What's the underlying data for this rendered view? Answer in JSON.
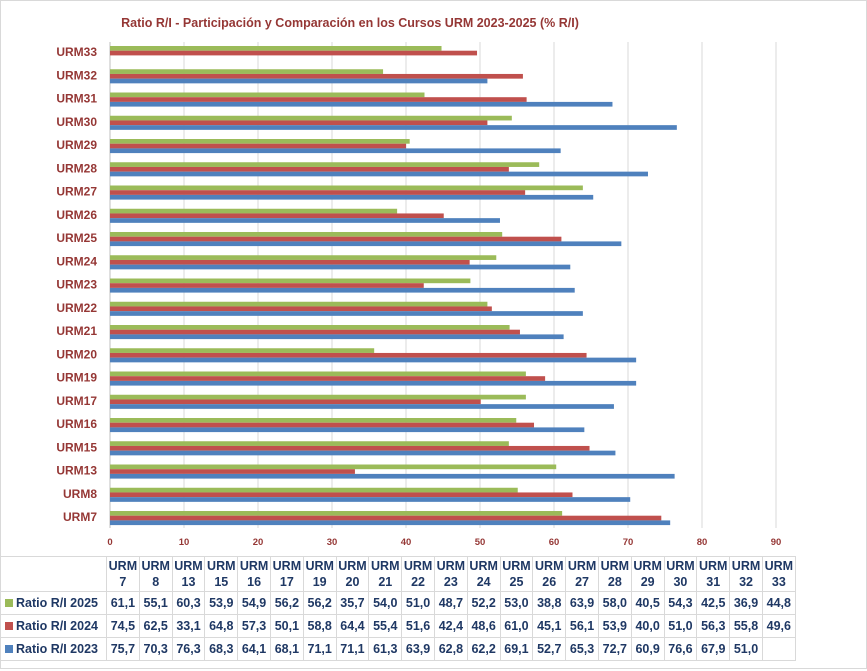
{
  "chart_data": {
    "type": "bar",
    "orientation": "horizontal",
    "title": "Ratio R/I - Participación y Comparación en los Cursos URM 2023-2025 (% R/I)",
    "categories": [
      "URM7",
      "URM8",
      "URM13",
      "URM15",
      "URM16",
      "URM17",
      "URM19",
      "URM20",
      "URM21",
      "URM22",
      "URM23",
      "URM24",
      "URM25",
      "URM26",
      "URM27",
      "URM28",
      "URM29",
      "URM30",
      "URM31",
      "URM32",
      "URM33"
    ],
    "table_headers": [
      [
        "URM",
        "7"
      ],
      [
        "URM",
        "8"
      ],
      [
        "URM",
        "13"
      ],
      [
        "URM",
        "15"
      ],
      [
        "URM",
        "16"
      ],
      [
        "URM",
        "17"
      ],
      [
        "URM",
        "19"
      ],
      [
        "URM",
        "20"
      ],
      [
        "URM",
        "21"
      ],
      [
        "URM",
        "22"
      ],
      [
        "URM",
        "23"
      ],
      [
        "URM",
        "24"
      ],
      [
        "URM",
        "25"
      ],
      [
        "URM",
        "26"
      ],
      [
        "URM",
        "27"
      ],
      [
        "URM",
        "28"
      ],
      [
        "URM",
        "29"
      ],
      [
        "URM",
        "30"
      ],
      [
        "URM",
        "31"
      ],
      [
        "URM",
        "32"
      ],
      [
        "URM",
        "33"
      ]
    ],
    "series": [
      {
        "name": "Ratio R/I 2025",
        "color": "#9BBB59",
        "values": [
          61.1,
          55.1,
          60.3,
          53.9,
          54.9,
          56.2,
          56.2,
          35.7,
          54.0,
          51.0,
          48.7,
          52.2,
          53.0,
          38.8,
          63.9,
          58.0,
          40.5,
          54.3,
          42.5,
          36.9,
          44.8
        ]
      },
      {
        "name": "Ratio R/I 2024",
        "color": "#C0504D",
        "values": [
          74.5,
          62.5,
          33.1,
          64.8,
          57.3,
          50.1,
          58.8,
          64.4,
          55.4,
          51.6,
          42.4,
          48.6,
          61.0,
          45.1,
          56.1,
          53.9,
          40.0,
          51.0,
          56.3,
          55.8,
          49.6
        ]
      },
      {
        "name": "Ratio R/I  2023",
        "color": "#4F81BD",
        "values": [
          75.7,
          70.3,
          76.3,
          68.3,
          64.1,
          68.1,
          71.1,
          71.1,
          61.3,
          63.9,
          62.8,
          62.2,
          69.1,
          52.7,
          65.3,
          72.7,
          60.9,
          76.6,
          67.9,
          51.0,
          null
        ]
      }
    ],
    "xlim": [
      0,
      90
    ],
    "xticks": [
      0,
      10,
      20,
      30,
      40,
      50,
      60,
      70,
      80,
      90
    ],
    "grid": true,
    "legend": "data-table-bottom",
    "title_color": "#953735",
    "category_label_color": "#953735"
  }
}
